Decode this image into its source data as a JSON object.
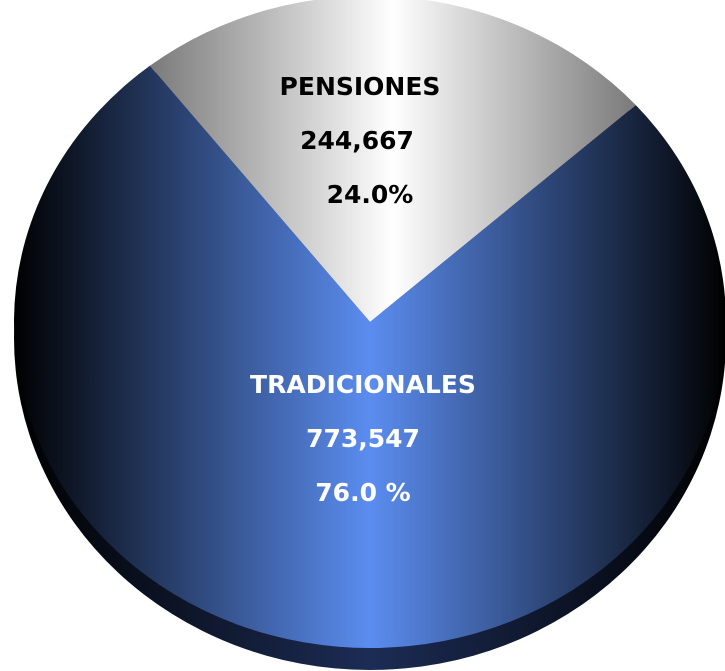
{
  "chart_data": {
    "type": "pie",
    "categories": [
      "PENSIONES",
      "TRADICIONALES"
    ],
    "values": [
      244667,
      773547
    ],
    "value_labels": [
      "244,667",
      "773,547"
    ],
    "percents": [
      24.0,
      76.0
    ],
    "percent_labels": [
      "24.0%",
      "76.0 %"
    ],
    "colors": [
      "#c4c4c4",
      "#5b8df0"
    ]
  }
}
